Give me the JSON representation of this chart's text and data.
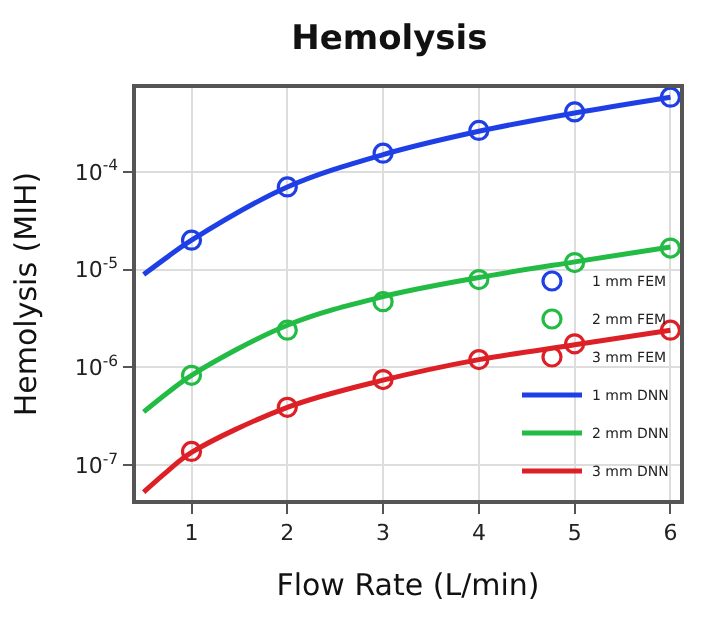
{
  "chart_data": {
    "type": "scatter",
    "title": "Hemolysis",
    "xlabel": "Flow Rate (L/min)",
    "ylabel": "Hemolysis (MIH)",
    "x": [
      1,
      2,
      3,
      4,
      5,
      6
    ],
    "series": [
      {
        "name": "1 mm FEM",
        "color": "#1f3fe6",
        "marker": "circle",
        "values": [
          2e-05,
          7e-05,
          0.000155,
          0.000265,
          0.00041,
          0.00058
        ]
      },
      {
        "name": "2 mm FEM",
        "color": "#22bb44",
        "marker": "circle",
        "values": [
          8.3e-07,
          2.4e-06,
          4.7e-06,
          7.9e-06,
          1.18e-05,
          1.66e-05
        ]
      },
      {
        "name": "3 mm FEM",
        "color": "#dd1f26",
        "marker": "circle",
        "values": [
          1.38e-07,
          3.9e-07,
          7.5e-07,
          1.2e-06,
          1.74e-06,
          2.4e-06
        ]
      },
      {
        "name": "1 mm DNN",
        "type": "line",
        "color": "#1f3fe6",
        "marker": "none",
        "x": [
          0.5,
          0.75,
          1,
          2,
          3,
          4,
          5,
          6
        ],
        "values": [
          8.9e-06,
          1.35e-05,
          2e-05,
          7e-05,
          0.00015,
          0.00026,
          0.0004,
          0.00058
        ]
      },
      {
        "name": "2 mm DNN",
        "type": "line",
        "color": "#22bb44",
        "marker": "none",
        "x": [
          0.5,
          0.75,
          1,
          2,
          3,
          4,
          5,
          6
        ],
        "values": [
          3.5e-07,
          5.5e-07,
          8.3e-07,
          2.7e-06,
          5.3e-06,
          8.3e-06,
          1.2e-05,
          1.7e-05
        ]
      },
      {
        "name": "3 mm DNN",
        "type": "line",
        "color": "#dd1f26",
        "marker": "none",
        "x": [
          0.5,
          0.75,
          1,
          2,
          3,
          4,
          5,
          6
        ],
        "values": [
          5.3e-08,
          8.7e-08,
          1.35e-07,
          3.9e-07,
          7.4e-07,
          1.2e-06,
          1.7e-06,
          2.4e-06
        ]
      }
    ],
    "log": "y",
    "grid": true,
    "legend": "bottom right",
    "xlim": [
      0.42,
      6.1
    ],
    "xticks": [
      1,
      2,
      3,
      4,
      5,
      6
    ],
    "ylim": [
      4.4e-08,
      0.00072
    ],
    "yticks": [
      {
        "value": 1e-07,
        "label": "10$^{-7}$"
      },
      {
        "value": 1e-06,
        "label": "10$^{-6}$"
      },
      {
        "value": 1e-05,
        "label": "10$^{-5}$"
      },
      {
        "value": 0.0001,
        "label": "10$^{-4}$"
      }
    ]
  }
}
